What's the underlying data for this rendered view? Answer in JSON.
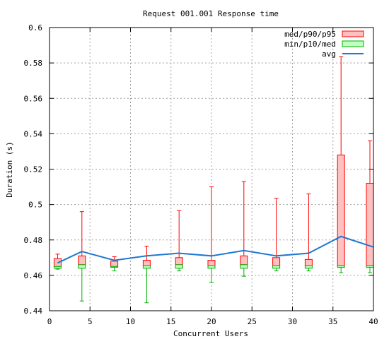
{
  "chart_data": {
    "type": "box",
    "title": "Request 001.001 Response time",
    "xlabel": "Concurrent Users",
    "ylabel": "Duration (s)",
    "xlim": [
      0,
      40
    ],
    "ylim": [
      0.44,
      0.6
    ],
    "xticks": [
      0,
      5,
      10,
      15,
      20,
      25,
      30,
      35,
      40
    ],
    "yticks": [
      0.44,
      0.46,
      0.48,
      0.5,
      0.52,
      0.54,
      0.56,
      0.58,
      0.6
    ],
    "grid": true,
    "legend_position": "top-right",
    "legend": [
      {
        "label": "med/p90/p95",
        "kind": "box-upper"
      },
      {
        "label": "min/p10/med",
        "kind": "box-lower"
      },
      {
        "label": "avg",
        "kind": "line"
      }
    ],
    "colors": {
      "upper_fill": "#ffc0c0",
      "upper_stroke": "#ff0000",
      "lower_fill": "#c0ffc0",
      "lower_stroke": "#00b000",
      "avg_line": "#1e78d2",
      "grid": "#a0a0a0"
    },
    "points": [
      {
        "x": 1,
        "min": 0.4635,
        "p10": 0.464,
        "med": 0.465,
        "p90": 0.4695,
        "p95": 0.472,
        "avg": 0.467
      },
      {
        "x": 4,
        "min": 0.4455,
        "p10": 0.464,
        "med": 0.466,
        "p90": 0.471,
        "p95": 0.496,
        "avg": 0.4735
      },
      {
        "x": 8,
        "min": 0.4625,
        "p10": 0.4645,
        "med": 0.465,
        "p90": 0.468,
        "p95": 0.4705,
        "avg": 0.4685
      },
      {
        "x": 12,
        "min": 0.4445,
        "p10": 0.464,
        "med": 0.4655,
        "p90": 0.4685,
        "p95": 0.4765,
        "avg": 0.471
      },
      {
        "x": 16,
        "min": 0.4625,
        "p10": 0.464,
        "med": 0.466,
        "p90": 0.47,
        "p95": 0.4965,
        "avg": 0.4725
      },
      {
        "x": 20,
        "min": 0.456,
        "p10": 0.464,
        "med": 0.4655,
        "p90": 0.4685,
        "p95": 0.51,
        "avg": 0.471
      },
      {
        "x": 24,
        "min": 0.4595,
        "p10": 0.464,
        "med": 0.466,
        "p90": 0.471,
        "p95": 0.513,
        "avg": 0.474
      },
      {
        "x": 28,
        "min": 0.4625,
        "p10": 0.464,
        "med": 0.4655,
        "p90": 0.47,
        "p95": 0.5035,
        "avg": 0.471
      },
      {
        "x": 32,
        "min": 0.4625,
        "p10": 0.464,
        "med": 0.4655,
        "p90": 0.469,
        "p95": 0.506,
        "avg": 0.4725
      },
      {
        "x": 36,
        "min": 0.4615,
        "p10": 0.4645,
        "med": 0.4655,
        "p90": 0.528,
        "p95": 0.5835,
        "avg": 0.482
      },
      {
        "x": 40,
        "min": 0.4615,
        "p10": 0.4645,
        "med": 0.4655,
        "p90": 0.512,
        "p95": 0.536,
        "avg": 0.476
      }
    ]
  }
}
